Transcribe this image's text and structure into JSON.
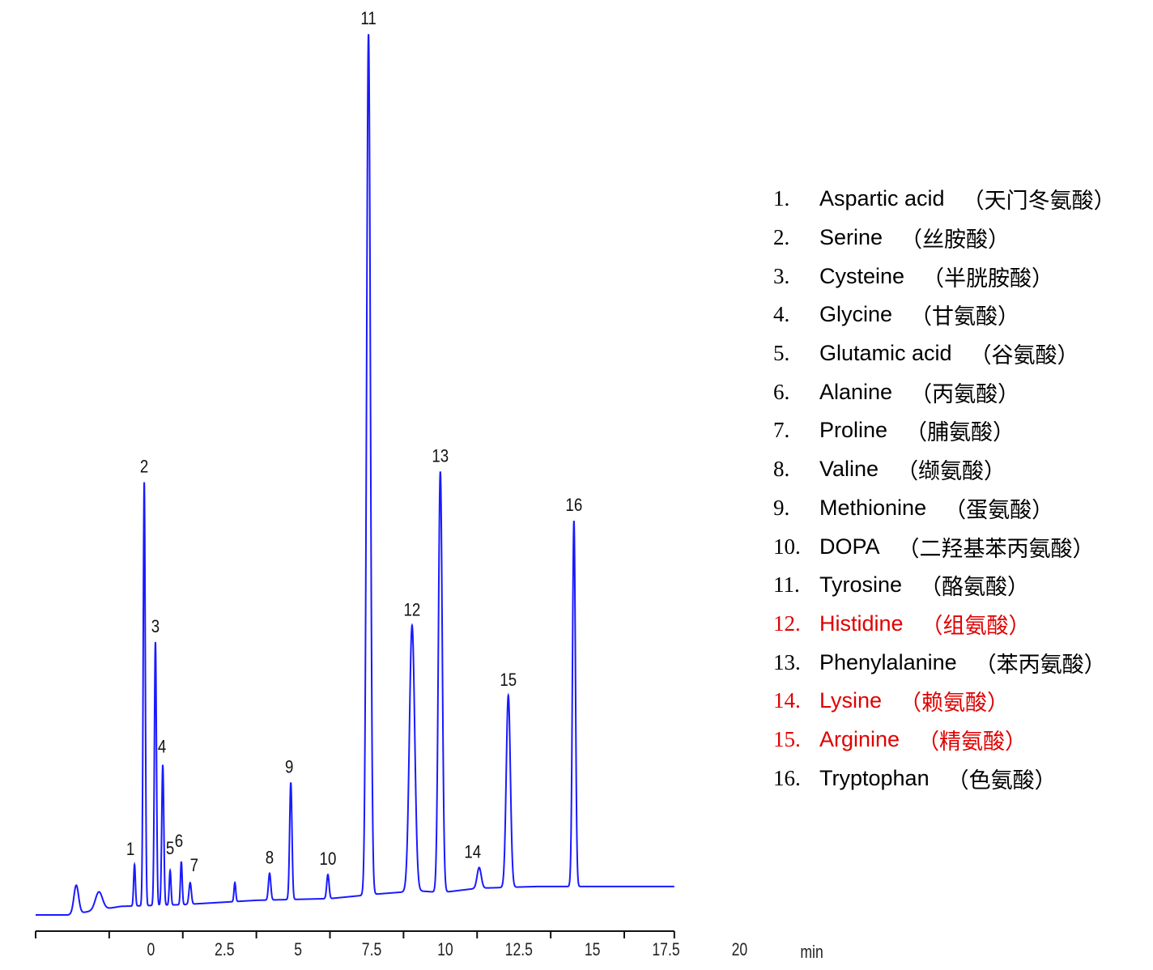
{
  "chart_data": {
    "type": "line",
    "title": "",
    "xlabel": "min",
    "ylabel": "",
    "xlim": [
      0,
      21.7
    ],
    "ylim": [
      0,
      100
    ],
    "x_ticks": [
      "0",
      "2.5",
      "5",
      "7.5",
      "10",
      "12.5",
      "15",
      "17.5",
      "20"
    ],
    "x_tick_values": [
      0,
      2.5,
      5,
      7.5,
      10,
      12.5,
      15,
      17.5,
      20
    ],
    "grid": false,
    "y_axis_shown": false,
    "line_color": "#1a1aff",
    "intensity_unit_note_printed": false,
    "baseline": [
      [
        0,
        0
      ],
      [
        1.1,
        0
      ],
      [
        2.9,
        1.0
      ],
      [
        5,
        1.2
      ],
      [
        7.5,
        1.7
      ],
      [
        10,
        1.9
      ],
      [
        11.5,
        2.4
      ],
      [
        13,
        2.8
      ],
      [
        13.8,
        2.6
      ],
      [
        15,
        3.1
      ],
      [
        17,
        3.3
      ],
      [
        21.7,
        3.3
      ]
    ],
    "peaks": [
      {
        "label": "",
        "rt": 1.38,
        "height": 3.3,
        "width": 0.08
      },
      {
        "label": "",
        "rt": 2.15,
        "height": 2.1,
        "width": 0.12
      },
      {
        "label": "1",
        "rt": 3.36,
        "height": 4.8,
        "width": 0.03
      },
      {
        "label": "2",
        "rt": 3.69,
        "height": 49.2,
        "width": 0.035
      },
      {
        "label": "3",
        "rt": 4.07,
        "height": 30.6,
        "width": 0.035
      },
      {
        "label": "4",
        "rt": 4.32,
        "height": 16.3,
        "width": 0.035
      },
      {
        "label": "5",
        "rt": 4.57,
        "height": 4.0,
        "width": 0.03
      },
      {
        "label": "6",
        "rt": 4.95,
        "height": 5.0,
        "width": 0.03
      },
      {
        "label": "7",
        "rt": 5.25,
        "height": 2.5,
        "width": 0.04
      },
      {
        "label": "",
        "rt": 6.77,
        "height": 2.2,
        "width": 0.03
      },
      {
        "label": "8",
        "rt": 7.95,
        "height": 3.1,
        "width": 0.04
      },
      {
        "label": "9",
        "rt": 8.67,
        "height": 13.6,
        "width": 0.04
      },
      {
        "label": "10",
        "rt": 9.93,
        "height": 2.8,
        "width": 0.04
      },
      {
        "label": "11",
        "rt": 11.31,
        "height": 100,
        "width": 0.065
      },
      {
        "label": "12",
        "rt": 12.79,
        "height": 30.9,
        "width": 0.09
      },
      {
        "label": "13",
        "rt": 13.75,
        "height": 48.9,
        "width": 0.065
      },
      {
        "label": "14",
        "rt": 15.07,
        "height": 2.4,
        "width": 0.07
      },
      {
        "label": "15",
        "rt": 16.06,
        "height": 22.3,
        "width": 0.07
      },
      {
        "label": "16",
        "rt": 18.29,
        "height": 42.5,
        "width": 0.05
      }
    ]
  },
  "legend": [
    {
      "num": "1.",
      "name": "Aspartic acid",
      "cn": "（天门冬氨酸）",
      "color": "#000000"
    },
    {
      "num": "2.",
      "name": "Serine",
      "cn": "（丝胺酸）",
      "color": "#000000"
    },
    {
      "num": "3.",
      "name": "Cysteine",
      "cn": "（半胱胺酸）",
      "color": "#000000"
    },
    {
      "num": "4.",
      "name": "Glycine",
      "cn": "（甘氨酸）",
      "color": "#000000"
    },
    {
      "num": "5.",
      "name": "Glutamic acid",
      "cn": "（谷氨酸）",
      "color": "#000000"
    },
    {
      "num": "6.",
      "name": "Alanine",
      "cn": "（丙氨酸）",
      "color": "#000000"
    },
    {
      "num": "7.",
      "name": "Proline",
      "cn": "（脯氨酸）",
      "color": "#000000"
    },
    {
      "num": "8.",
      "name": "Valine",
      "cn": "（缬氨酸）",
      "color": "#000000"
    },
    {
      "num": "9.",
      "name": "Methionine",
      "cn": "（蛋氨酸）",
      "color": "#000000"
    },
    {
      "num": "10.",
      "name": "DOPA",
      "cn": "（二羟基苯丙氨酸）",
      "color": "#000000"
    },
    {
      "num": "11.",
      "name": "Tyrosine",
      "cn": "（酪氨酸）",
      "color": "#000000"
    },
    {
      "num": "12.",
      "name": "Histidine",
      "cn": "（组氨酸）",
      "color": "#e00000"
    },
    {
      "num": "13.",
      "name": "Phenylalanine",
      "cn": "（苯丙氨酸）",
      "color": "#000000"
    },
    {
      "num": "14.",
      "name": "Lysine",
      "cn": "（赖氨酸）",
      "color": "#e00000"
    },
    {
      "num": "15.",
      "name": "Arginine",
      "cn": "（精氨酸）",
      "color": "#e00000"
    },
    {
      "num": "16.",
      "name": "Tryptophan",
      "cn": "（色氨酸）",
      "color": "#000000"
    }
  ]
}
